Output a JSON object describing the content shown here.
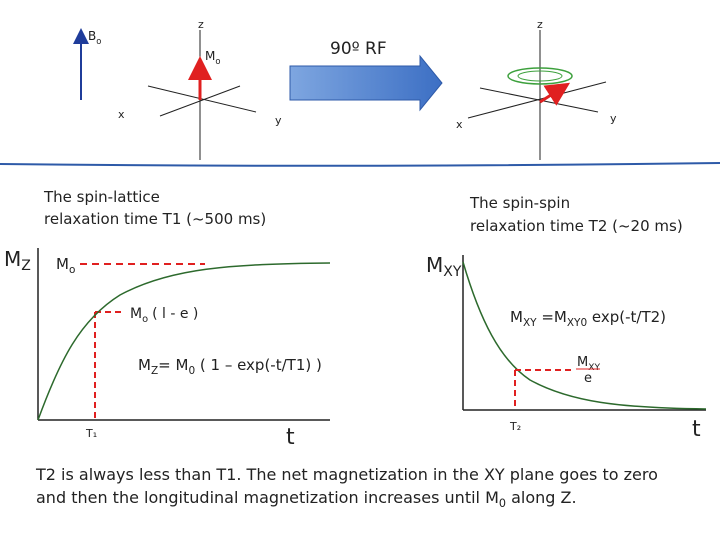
{
  "top": {
    "left_axes": {
      "z": "z",
      "x": "x",
      "y": "y",
      "b0": [
        "B",
        "o"
      ],
      "m0": [
        "M",
        "o"
      ]
    },
    "arrow_label": "90º RF",
    "right_axes": {
      "z": "z",
      "x": "x",
      "y": "y"
    }
  },
  "t1_panel": {
    "caption": [
      "The spin-lattice",
      "relaxation time T1 (~500 ms)"
    ],
    "axis_label": [
      "M",
      "Z"
    ],
    "level_label": [
      "M",
      "o"
    ],
    "point_label": [
      "M",
      "o",
      "( l - e )"
    ],
    "equation": [
      "M",
      "Z",
      "= M",
      "0",
      " ( 1 – exp(-t/T1) )"
    ],
    "tick": "T₁",
    "x_label": "t"
  },
  "t2_panel": {
    "caption": [
      "The spin-spin",
      "relaxation time T2 (~20 ms)"
    ],
    "axis_label": [
      "M",
      "XY"
    ],
    "equation": [
      "M",
      "XY",
      " =M",
      "XY0",
      " exp(-t/T2)"
    ],
    "point_label": [
      "M",
      "XY",
      "e"
    ],
    "tick": "T₂",
    "x_label": "t"
  },
  "summary": [
    "T2 is always less than T1. The net magnetization in the XY plane goes to zero",
    "and then the longitudinal magnetization increases until M",
    "0",
    " along Z."
  ]
}
